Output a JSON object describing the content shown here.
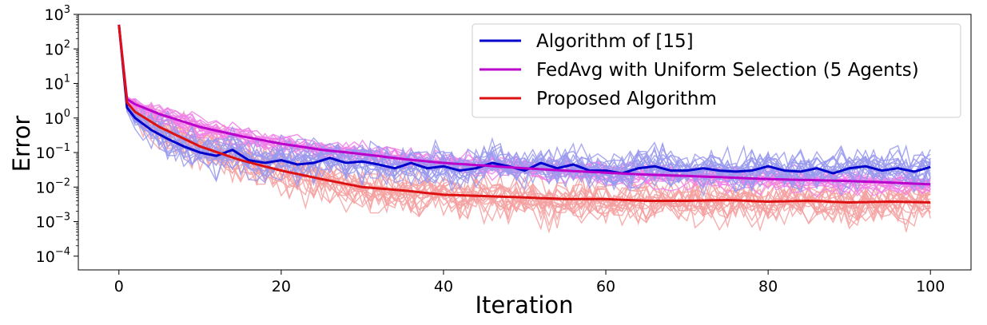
{
  "chart_data": {
    "type": "line",
    "title": "",
    "xlabel": "Iteration",
    "ylabel": "Error",
    "yscale": "log",
    "xlim": [
      -5,
      105
    ],
    "ylim": [
      4e-05,
      1000
    ],
    "xticks": [
      0,
      20,
      40,
      60,
      80,
      100
    ],
    "xtick_labels": [
      "0",
      "20",
      "40",
      "60",
      "80",
      "100"
    ],
    "yticks": [
      1000,
      100,
      10,
      1,
      0.1,
      0.01,
      0.001,
      0.0001
    ],
    "ytick_labels": [
      {
        "base": "10",
        "exp": "3"
      },
      {
        "base": "10",
        "exp": "2"
      },
      {
        "base": "10",
        "exp": "1"
      },
      {
        "base": "10",
        "exp": "0"
      },
      {
        "base": "10",
        "exp": "−1"
      },
      {
        "base": "10",
        "exp": "−2"
      },
      {
        "base": "10",
        "exp": "−3"
      },
      {
        "base": "10",
        "exp": "−4"
      }
    ],
    "legend_position": "top-right",
    "series": [
      {
        "name": "Algorithm of [15]",
        "color": "#0000cc",
        "trial_color": "#9999ee",
        "anchor_iterations": [
          0,
          1,
          2,
          4,
          6,
          8,
          10,
          12,
          14,
          16,
          18,
          20,
          22,
          24,
          26,
          28,
          30,
          32,
          34,
          36,
          38,
          40,
          42,
          44,
          46,
          48,
          50,
          52,
          54,
          56,
          58,
          60,
          62,
          64,
          66,
          68,
          70,
          72,
          74,
          76,
          78,
          80,
          82,
          84,
          86,
          88,
          90,
          92,
          94,
          96,
          98,
          100
        ],
        "anchor_errors": [
          500,
          2.0,
          1.0,
          0.45,
          0.25,
          0.15,
          0.1,
          0.08,
          0.12,
          0.06,
          0.05,
          0.06,
          0.045,
          0.05,
          0.07,
          0.05,
          0.055,
          0.045,
          0.035,
          0.05,
          0.035,
          0.04,
          0.03,
          0.035,
          0.05,
          0.04,
          0.03,
          0.05,
          0.035,
          0.045,
          0.03,
          0.03,
          0.025,
          0.035,
          0.04,
          0.03,
          0.03,
          0.035,
          0.03,
          0.028,
          0.03,
          0.04,
          0.03,
          0.028,
          0.035,
          0.025,
          0.035,
          0.04,
          0.03,
          0.035,
          0.028,
          0.038
        ]
      },
      {
        "name": "FedAvg with Uniform Selection (5 Agents)",
        "color": "#bb00cc",
        "trial_color": "#f080e8",
        "anchor_iterations": [
          0,
          1,
          2,
          5,
          10,
          15,
          20,
          25,
          30,
          35,
          40,
          45,
          50,
          55,
          60,
          65,
          70,
          75,
          80,
          85,
          90,
          95,
          100
        ],
        "anchor_errors": [
          500,
          3.5,
          2.5,
          1.3,
          0.55,
          0.3,
          0.18,
          0.12,
          0.09,
          0.065,
          0.05,
          0.042,
          0.035,
          0.03,
          0.026,
          0.023,
          0.021,
          0.019,
          0.017,
          0.016,
          0.015,
          0.0135,
          0.012
        ]
      },
      {
        "name": "Proposed Algorithm",
        "color": "#dd1111",
        "trial_color": "#f5a0a0",
        "anchor_iterations": [
          0,
          1,
          2,
          5,
          10,
          15,
          20,
          25,
          30,
          35,
          40,
          45,
          50,
          55,
          60,
          65,
          70,
          75,
          80,
          85,
          90,
          95,
          100
        ],
        "anchor_errors": [
          500,
          2.8,
          1.5,
          0.55,
          0.15,
          0.06,
          0.03,
          0.017,
          0.01,
          0.008,
          0.006,
          0.0055,
          0.005,
          0.0045,
          0.0045,
          0.004,
          0.004,
          0.0042,
          0.0038,
          0.004,
          0.0036,
          0.0038,
          0.0036
        ]
      }
    ]
  }
}
